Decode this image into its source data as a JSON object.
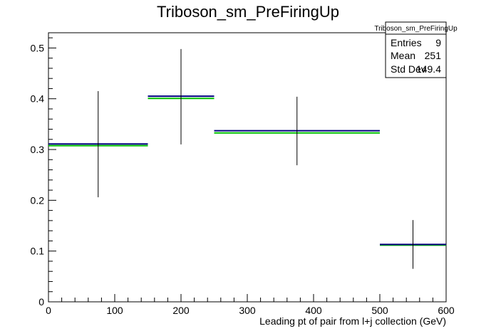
{
  "chart_data": {
    "type": "bar",
    "title": "Triboson_sm_PreFiringUp",
    "xlabel": "Leading pt of pair from l+j collection (GeV)",
    "ylabel": "",
    "xlim": [
      0,
      600
    ],
    "ylim": [
      0,
      0.53
    ],
    "x_ticks": [
      "0",
      "100",
      "200",
      "300",
      "400",
      "500",
      "600"
    ],
    "y_ticks": [
      "0",
      "0.1",
      "0.2",
      "0.3",
      "0.4",
      "0.5"
    ],
    "grid": false,
    "bins": [
      {
        "low": 0,
        "high": 150,
        "center": 75,
        "value": 0.311,
        "err_low": 0.206,
        "err_high": 0.415,
        "ref_value": 0.309
      },
      {
        "low": 150,
        "high": 250,
        "center": 200,
        "value": 0.405,
        "err_low": 0.31,
        "err_high": 0.498,
        "ref_value": 0.402
      },
      {
        "low": 250,
        "high": 500,
        "center": 375,
        "value": 0.337,
        "err_low": 0.269,
        "err_high": 0.404,
        "ref_value": 0.334
      },
      {
        "low": 500,
        "high": 600,
        "center": 550,
        "value": 0.113,
        "err_low": 0.065,
        "err_high": 0.161,
        "ref_value": 0.113
      }
    ],
    "stats_box": {
      "title": "Triboson_sm_PreFiringUp",
      "rows": [
        {
          "label": "Entries",
          "value": "9"
        },
        {
          "label": "Mean",
          "value": "251"
        },
        {
          "label": "Std Dev",
          "value": "149.4"
        }
      ],
      "placement": "top-right"
    },
    "colors": {
      "main_line": "#00007f",
      "ref_line": "#00c000",
      "error_bar": "#000000",
      "axis": "#000000"
    }
  }
}
